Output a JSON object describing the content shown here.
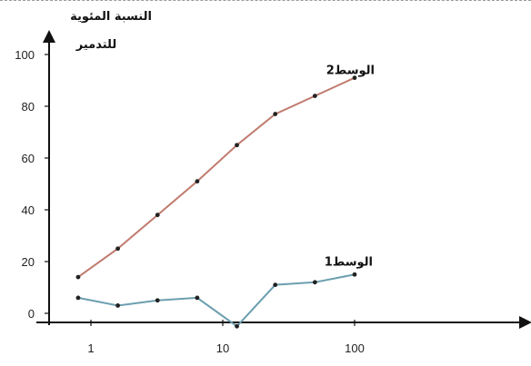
{
  "chart_data": {
    "type": "line",
    "ylabel_line1": "النسبة المئوية",
    "ylabel_line2": "للتدمير",
    "xscale": "log",
    "ylim": [
      -5,
      105
    ],
    "xlim": [
      0.5,
      2000
    ],
    "x_ticks": [
      1,
      10,
      100
    ],
    "x_tick_labels": [
      "1",
      "10",
      "100"
    ],
    "y_ticks": [
      0,
      20,
      40,
      60,
      80,
      100
    ],
    "y_tick_labels": [
      "0",
      "20",
      "40",
      "60",
      "80",
      "100"
    ],
    "grid": false,
    "series": [
      {
        "name": "الوسط2",
        "color": "#c07a6e",
        "x": [
          0.8,
          1.6,
          3.2,
          6.4,
          12.8,
          25,
          50,
          100
        ],
        "values": [
          14,
          25,
          38,
          51,
          65,
          77,
          84,
          91
        ]
      },
      {
        "name": "الوسط1",
        "color": "#6b9faf",
        "x": [
          0.8,
          1.6,
          3.2,
          6.4,
          12.8,
          25,
          50,
          100
        ],
        "values": [
          6,
          3,
          5,
          6,
          -5,
          11,
          12,
          15
        ]
      }
    ]
  }
}
